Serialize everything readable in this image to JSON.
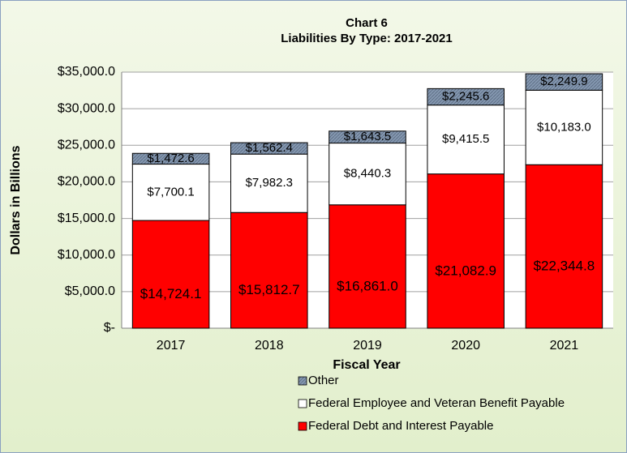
{
  "chart_data": {
    "type": "stacked_bar",
    "title": "Chart 6",
    "subtitle": "Liabilities By Type: 2017-2021",
    "x_label": "Fiscal Year",
    "y_label": "Dollars in Billions",
    "categories": [
      "2017",
      "2018",
      "2019",
      "2020",
      "2021"
    ],
    "series": [
      {
        "name": "Federal Debt and Interest Payable",
        "color": "#ff0000",
        "values": [
          14724.1,
          15812.7,
          16861.0,
          21082.9,
          22344.8
        ],
        "value_labels": [
          "$14,724.1",
          "$15,812.7",
          "$16,861.0",
          "$21,082.9",
          "$22,344.8"
        ]
      },
      {
        "name": "Federal Employee and Veteran Benefit Payable",
        "color": "#ffffff",
        "values": [
          7700.1,
          7982.3,
          8440.3,
          9415.5,
          10183.0
        ],
        "value_labels": [
          "$7,700.1",
          "$7,982.3",
          "$8,440.3",
          "$9,415.5",
          "$10,183.0"
        ]
      },
      {
        "name": "Other",
        "color": "#8497b0",
        "values": [
          1472.6,
          1562.4,
          1643.5,
          2245.6,
          2249.9
        ],
        "value_labels": [
          "$1,472.6",
          "$1,562.4",
          "$1,643.5",
          "$2,245.6",
          "$2,249.9"
        ]
      }
    ],
    "ylim": [
      0,
      35000
    ],
    "yticks": [
      {
        "value": 0,
        "label": "$-"
      },
      {
        "value": 5000,
        "label": "$5,000.0"
      },
      {
        "value": 10000,
        "label": "$10,000.0"
      },
      {
        "value": 15000,
        "label": "$15,000.0"
      },
      {
        "value": 20000,
        "label": "$20,000.0"
      },
      {
        "value": 25000,
        "label": "$25,000.0"
      },
      {
        "value": 30000,
        "label": "$30,000.0"
      },
      {
        "value": 35000,
        "label": "$35,000.0"
      }
    ],
    "grid": true,
    "legend": "bottom"
  }
}
